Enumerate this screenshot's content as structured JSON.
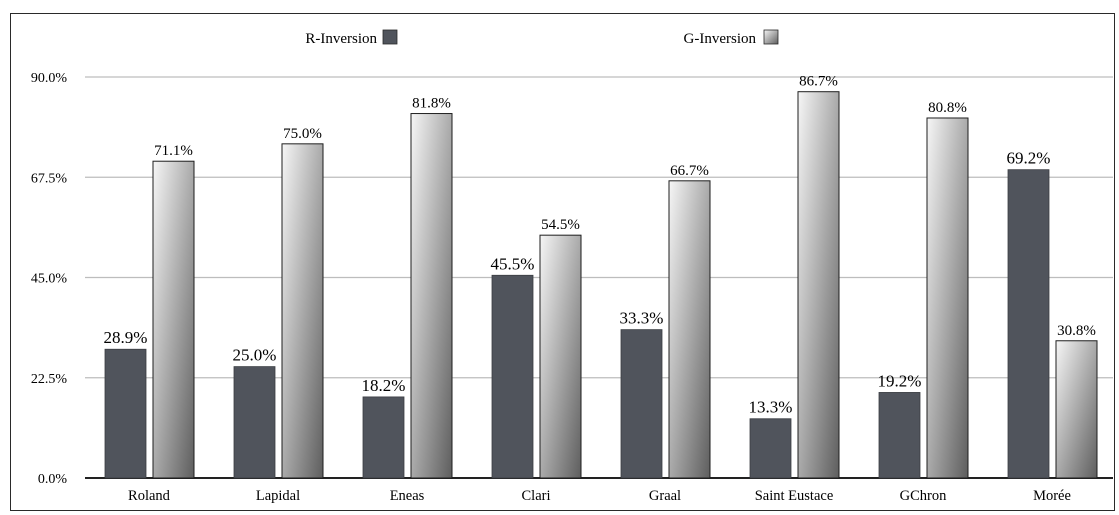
{
  "chart_data": {
    "type": "bar",
    "categories": [
      "Roland",
      "Lapidal",
      "Eneas",
      "Clari",
      "Graal",
      "Saint Eustace",
      "GChron",
      "Morée"
    ],
    "series": [
      {
        "name": "R-Inversion",
        "values": [
          28.9,
          25.0,
          18.2,
          45.5,
          33.3,
          13.3,
          19.2,
          69.2
        ],
        "labels": [
          "28.9%",
          "25.0%",
          "18.2%",
          "45.5%",
          "33.3%",
          "13.3%",
          "19.2%",
          "69.2%"
        ]
      },
      {
        "name": "G-Inversion",
        "values": [
          71.1,
          75.0,
          81.8,
          54.5,
          66.7,
          86.7,
          80.8,
          30.8
        ],
        "labels": [
          "71.1%",
          "75.0%",
          "81.8%",
          "54.5%",
          "66.7%",
          "86.7%",
          "80.8%",
          "30.8%"
        ]
      }
    ],
    "yticks": [
      0,
      22.5,
      45,
      67.5,
      90
    ],
    "ytick_labels": [
      "0.0%",
      "22.5%",
      "45.0%",
      "67.5%",
      "90.0%"
    ],
    "ylim": [
      0,
      90
    ],
    "grid": true,
    "legend_position": "top",
    "colors": {
      "r_fill": "#50545c",
      "g_light": "#f6f6f6",
      "g_dark": "#5e5e5e",
      "grid": "#bdbdbd",
      "axis": "#222222"
    }
  }
}
